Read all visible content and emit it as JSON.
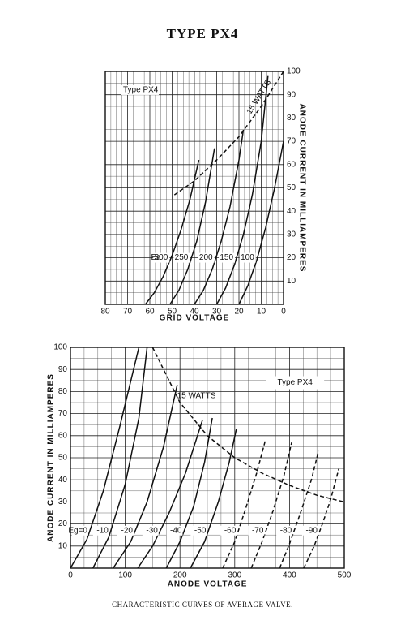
{
  "title": "TYPE PX4",
  "caption": "CHARACTERISTIC CURVES OF AVERAGE VALVE.",
  "chart_data": [
    {
      "type": "line",
      "x_label": "GRID VOLTAGE",
      "y_label": "ANODE CURRENT IN MILLIAMPERES",
      "xlim": [
        80,
        0
      ],
      "xticks": [
        80,
        70,
        60,
        50,
        40,
        30,
        20,
        10,
        0
      ],
      "ylim": [
        0,
        100
      ],
      "yticks": [
        10,
        20,
        30,
        40,
        50,
        60,
        70,
        80,
        90,
        100
      ],
      "y_axis_side": "right",
      "grid": true,
      "annotations": [
        "Type PX4",
        "15 WATTS",
        "Ea"
      ],
      "series": [
        {
          "name": "300",
          "color": "#111111",
          "x": [
            62,
            58,
            54,
            50,
            46,
            42,
            38
          ],
          "values": [
            0,
            5,
            12,
            21,
            32,
            45,
            62
          ]
        },
        {
          "name": "250",
          "color": "#111111",
          "x": [
            51,
            47,
            43,
            39,
            35,
            31
          ],
          "values": [
            0,
            6,
            15,
            27,
            44,
            67
          ]
        },
        {
          "name": "200",
          "color": "#111111",
          "x": [
            40,
            36,
            32,
            28,
            24,
            20,
            18
          ],
          "values": [
            0,
            6,
            15,
            27,
            42,
            62,
            75
          ]
        },
        {
          "name": "150",
          "color": "#111111",
          "x": [
            30,
            26,
            22,
            18,
            14,
            10,
            7
          ],
          "values": [
            0,
            7,
            17,
            30,
            47,
            70,
            98
          ]
        },
        {
          "name": "100",
          "color": "#111111",
          "x": [
            20,
            16,
            12,
            8,
            4,
            0
          ],
          "values": [
            0,
            8,
            19,
            33,
            50,
            70
          ]
        },
        {
          "name": "15 WATTS",
          "color": "#111111",
          "dashed": true,
          "x": [
            49,
            40,
            30,
            20,
            10,
            0
          ],
          "values": [
            47,
            53,
            62,
            72,
            85,
            100
          ]
        }
      ]
    },
    {
      "type": "line",
      "x_label": "ANODE VOLTAGE",
      "y_label": "ANODE CURRENT IN MILLIAMPERES",
      "xlim": [
        0,
        500
      ],
      "xticks": [
        0,
        100,
        200,
        300,
        400,
        500
      ],
      "ylim": [
        0,
        100
      ],
      "yticks": [
        10,
        20,
        30,
        40,
        50,
        60,
        70,
        80,
        90,
        100
      ],
      "y_axis_side": "left",
      "grid": true,
      "annotations": [
        "Type PX4",
        "15 WATTS"
      ],
      "series": [
        {
          "name": "Eg=0",
          "color": "#111111",
          "x": [
            0,
            30,
            60,
            90,
            125
          ],
          "values": [
            0,
            13,
            35,
            64,
            100
          ]
        },
        {
          "name": "-10",
          "color": "#111111",
          "x": [
            41,
            70,
            100,
            125,
            140
          ],
          "values": [
            0,
            14,
            38,
            68,
            100
          ]
        },
        {
          "name": "-20",
          "color": "#111111",
          "x": [
            78,
            110,
            140,
            170,
            195
          ],
          "values": [
            0,
            12,
            30,
            55,
            83
          ]
        },
        {
          "name": "-30",
          "color": "#111111",
          "x": [
            123,
            150,
            180,
            210,
            241
          ],
          "values": [
            0,
            10,
            25,
            43,
            67
          ]
        },
        {
          "name": "-40",
          "color": "#111111",
          "x": [
            175,
            200,
            225,
            245,
            259
          ],
          "values": [
            0,
            12,
            28,
            48,
            68
          ]
        },
        {
          "name": "-50",
          "color": "#111111",
          "x": [
            219,
            245,
            270,
            290,
            303
          ],
          "values": [
            0,
            12,
            30,
            48,
            63
          ]
        },
        {
          "name": "-60",
          "color": "#111111",
          "dashed": true,
          "x": [
            278,
            300,
            320,
            340,
            356
          ],
          "values": [
            0,
            12,
            27,
            43,
            58
          ]
        },
        {
          "name": "-70",
          "color": "#111111",
          "dashed": true,
          "x": [
            330,
            350,
            370,
            390,
            404
          ],
          "values": [
            0,
            12,
            26,
            42,
            57
          ]
        },
        {
          "name": "-80",
          "color": "#111111",
          "dashed": true,
          "x": [
            382,
            400,
            420,
            440,
            453
          ],
          "values": [
            0,
            11,
            25,
            40,
            53
          ]
        },
        {
          "name": "-90",
          "color": "#111111",
          "dashed": true,
          "x": [
            426,
            445,
            460,
            475,
            490
          ],
          "values": [
            0,
            10,
            20,
            31,
            45
          ]
        },
        {
          "name": "15 WATTS",
          "color": "#111111",
          "dashed": true,
          "x": [
            150,
            200,
            250,
            300,
            350,
            400,
            450,
            500
          ],
          "values": [
            100,
            75,
            60,
            50,
            43,
            37.5,
            33,
            30
          ]
        }
      ]
    }
  ]
}
